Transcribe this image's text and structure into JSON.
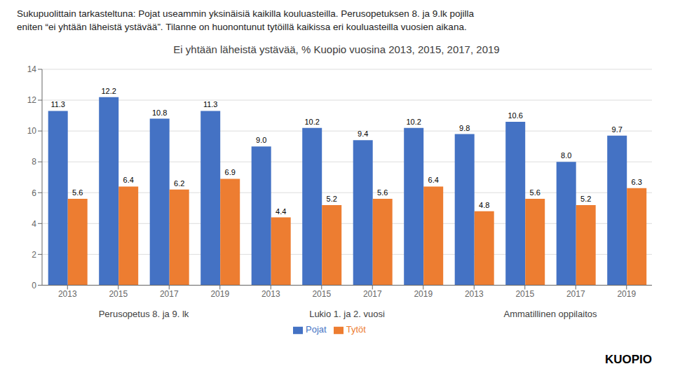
{
  "chart_data": {
    "type": "bar",
    "title": "Ei yhtään läheistä ystävää, % Kuopio vuosina 2013, 2015, 2017, 2019",
    "subtitle": [
      "Sukupuolittain tarkasteltuna: Pojat useammin yksinäisiä kaikilla kouluasteilla. Perusopetuksen 8. ja 9.lk pojilla",
      "eniten “ei yhtään läheistä ystävää”. Tilanne on huonontunut tytöillä kaikissa eri kouluasteilla vuosien aikana."
    ],
    "annotations": [
      "KUOPIO"
    ],
    "group_labels": [
      "Perusopetus 8. ja 9. lk",
      "Lukio 1. ja 2. vuosi",
      "Ammatillinen oppilaitos"
    ],
    "categories": [
      "2013",
      "2015",
      "2017",
      "2019",
      "2013",
      "2015",
      "2017",
      "2019",
      "2013",
      "2015",
      "2017",
      "2019"
    ],
    "series": [
      {
        "name": "Pojat",
        "color": "#4472C4",
        "values": [
          11.3,
          12.2,
          10.8,
          11.3,
          9.0,
          10.2,
          9.4,
          10.2,
          9.8,
          10.6,
          8.0,
          9.7
        ],
        "value_labels": [
          "11.3",
          "12.2",
          "10.8",
          "11.3",
          "9.0",
          "10.2",
          "9.4",
          "10.2",
          "9.8",
          "10.6",
          "8.0",
          "9.7"
        ]
      },
      {
        "name": "Tytöt",
        "color": "#ED7D31",
        "values": [
          5.6,
          6.4,
          6.2,
          6.9,
          4.4,
          5.2,
          5.6,
          6.4,
          4.8,
          5.6,
          5.2,
          6.3
        ],
        "value_labels": [
          "5.6",
          "6.4",
          "6.2",
          "6.9",
          "4.4",
          "5.2",
          "5.6",
          "6.4",
          "4.8",
          "5.6",
          "5.2",
          "6.3"
        ]
      }
    ],
    "ylim": [
      0,
      14.0
    ],
    "yticks": [
      0,
      2,
      4,
      6,
      8,
      10,
      12,
      14
    ],
    "grid": true,
    "legend": "bottom",
    "data_labels": true
  }
}
